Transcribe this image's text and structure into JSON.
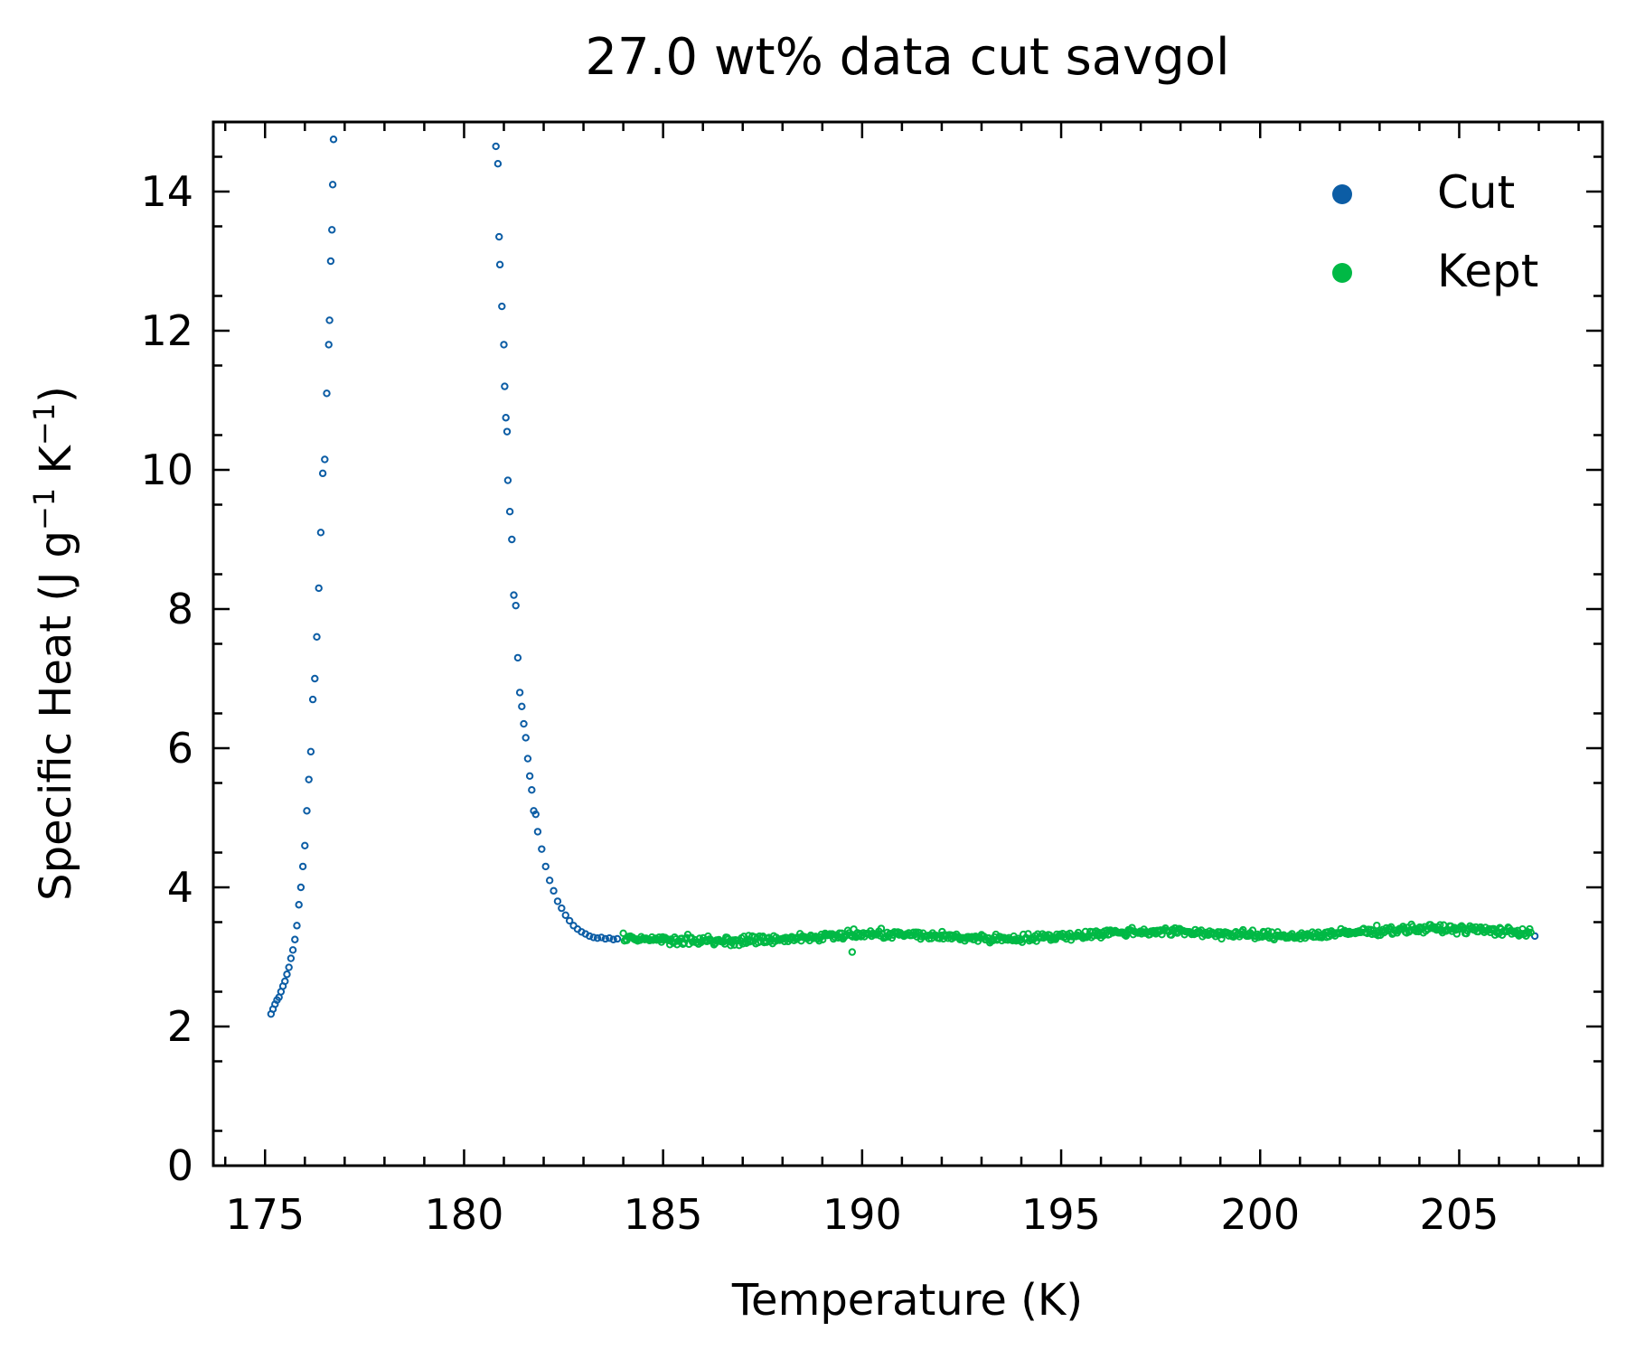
{
  "chart_data": {
    "type": "scatter",
    "title": "27.0 wt% data cut savgol",
    "xlabel": "Temperature (K)",
    "ylabel": {
      "prefix": "Specific Heat (J g",
      "sup1": "−1",
      "mid": " K",
      "sup2": "−1",
      "suffix": ")"
    },
    "xlim": [
      173.7,
      208.6
    ],
    "ylim": [
      0,
      15
    ],
    "xticks": [
      175,
      180,
      185,
      190,
      195,
      200,
      205
    ],
    "yticks": [
      0,
      2,
      4,
      6,
      8,
      10,
      12,
      14
    ],
    "xtick_labels": [
      "175",
      "180",
      "185",
      "190",
      "195",
      "200",
      "205"
    ],
    "ytick_labels": [
      "0",
      "2",
      "4",
      "6",
      "8",
      "10",
      "12",
      "14"
    ],
    "grid": false,
    "legend_position": "top-right",
    "series": [
      {
        "name": "Cut",
        "color": "#0c5da5",
        "marker": "open-circle",
        "points": [
          [
            175.15,
            2.18
          ],
          [
            175.2,
            2.25
          ],
          [
            175.25,
            2.32
          ],
          [
            175.3,
            2.38
          ],
          [
            175.35,
            2.42
          ],
          [
            175.4,
            2.5
          ],
          [
            175.45,
            2.58
          ],
          [
            175.5,
            2.65
          ],
          [
            175.55,
            2.75
          ],
          [
            175.6,
            2.85
          ],
          [
            175.65,
            2.98
          ],
          [
            175.7,
            3.1
          ],
          [
            175.75,
            3.25
          ],
          [
            175.8,
            3.45
          ],
          [
            175.85,
            3.75
          ],
          [
            175.9,
            4.0
          ],
          [
            175.95,
            4.3
          ],
          [
            176.0,
            4.6
          ],
          [
            176.05,
            5.1
          ],
          [
            176.1,
            5.55
          ],
          [
            176.15,
            5.95
          ],
          [
            176.2,
            6.7
          ],
          [
            176.25,
            7.0
          ],
          [
            176.3,
            7.6
          ],
          [
            176.35,
            8.3
          ],
          [
            176.4,
            9.1
          ],
          [
            176.45,
            9.95
          ],
          [
            176.5,
            10.15
          ],
          [
            176.55,
            11.1
          ],
          [
            176.6,
            11.8
          ],
          [
            176.62,
            12.15
          ],
          [
            176.65,
            13.0
          ],
          [
            176.68,
            13.45
          ],
          [
            176.7,
            14.1
          ],
          [
            176.72,
            14.75
          ],
          [
            180.8,
            14.65
          ],
          [
            180.85,
            14.4
          ],
          [
            180.88,
            13.35
          ],
          [
            180.9,
            12.95
          ],
          [
            180.95,
            12.35
          ],
          [
            181.0,
            11.8
          ],
          [
            181.02,
            11.2
          ],
          [
            181.05,
            10.75
          ],
          [
            181.08,
            10.55
          ],
          [
            181.1,
            9.85
          ],
          [
            181.15,
            9.4
          ],
          [
            181.2,
            9.0
          ],
          [
            181.25,
            8.2
          ],
          [
            181.3,
            8.05
          ],
          [
            181.35,
            7.3
          ],
          [
            181.4,
            6.8
          ],
          [
            181.45,
            6.6
          ],
          [
            181.5,
            6.35
          ],
          [
            181.55,
            6.15
          ],
          [
            181.6,
            5.85
          ],
          [
            181.65,
            5.6
          ],
          [
            181.7,
            5.4
          ],
          [
            181.75,
            5.1
          ],
          [
            181.8,
            5.05
          ],
          [
            181.85,
            4.8
          ],
          [
            181.95,
            4.55
          ],
          [
            182.05,
            4.3
          ],
          [
            182.15,
            4.1
          ],
          [
            182.25,
            3.95
          ],
          [
            182.35,
            3.8
          ],
          [
            182.45,
            3.7
          ],
          [
            182.55,
            3.6
          ],
          [
            182.65,
            3.52
          ],
          [
            182.75,
            3.45
          ],
          [
            182.85,
            3.4
          ],
          [
            182.95,
            3.36
          ],
          [
            183.05,
            3.33
          ],
          [
            183.15,
            3.3
          ],
          [
            183.25,
            3.28
          ],
          [
            183.35,
            3.27
          ],
          [
            183.45,
            3.28
          ],
          [
            183.55,
            3.26
          ],
          [
            183.65,
            3.27
          ],
          [
            183.75,
            3.25
          ],
          [
            183.85,
            3.26
          ],
          [
            206.9,
            3.3
          ]
        ]
      },
      {
        "name": "Kept",
        "color": "#00b945",
        "marker": "open-circle",
        "x_start": 184.0,
        "x_end": 206.8,
        "x_step": 0.03,
        "baseline_start": 3.25,
        "baseline_end": 3.38,
        "noise": 0.06,
        "seed": 27,
        "outliers": [
          [
            189.75,
            3.07
          ]
        ]
      }
    ]
  }
}
